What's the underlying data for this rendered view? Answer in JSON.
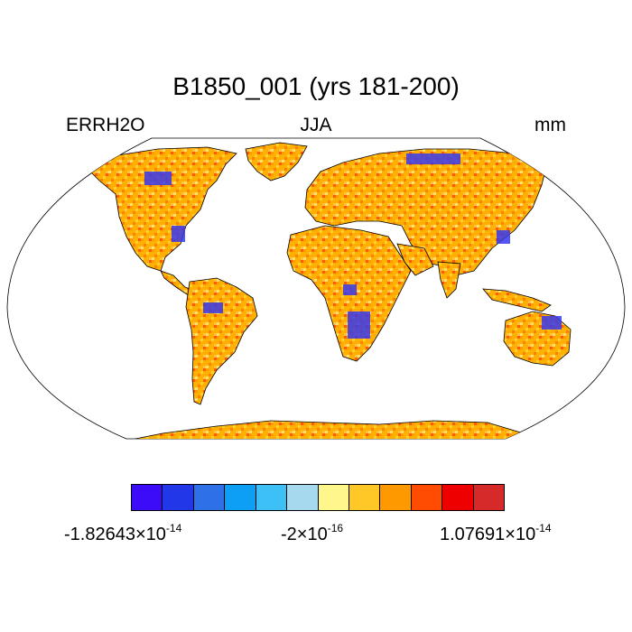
{
  "title": "B1850_001 (yrs 181-200)",
  "left_label": "ERRH2O",
  "center_label": "JJA",
  "right_label": "mm",
  "colorbar": {
    "colors": [
      "#3c0cf8",
      "#2238e8",
      "#2e70e8",
      "#0c9ff5",
      "#3cc0f5",
      "#a6d8ee",
      "#fff68c",
      "#ffc826",
      "#ff9900",
      "#ff4c00",
      "#ee0000",
      "#d62a2a"
    ],
    "min_mantissa": "-1.82643",
    "mid_mantissa": "-2",
    "max_mantissa": "1.07691",
    "times": "×10",
    "min_exponent": "-14",
    "mid_exponent": "-16",
    "max_exponent": "-14"
  },
  "map": {
    "projection": "robinson",
    "field": "ERRH2O",
    "season": "JJA",
    "units": "mm",
    "dominant_color": "#ffb000"
  }
}
